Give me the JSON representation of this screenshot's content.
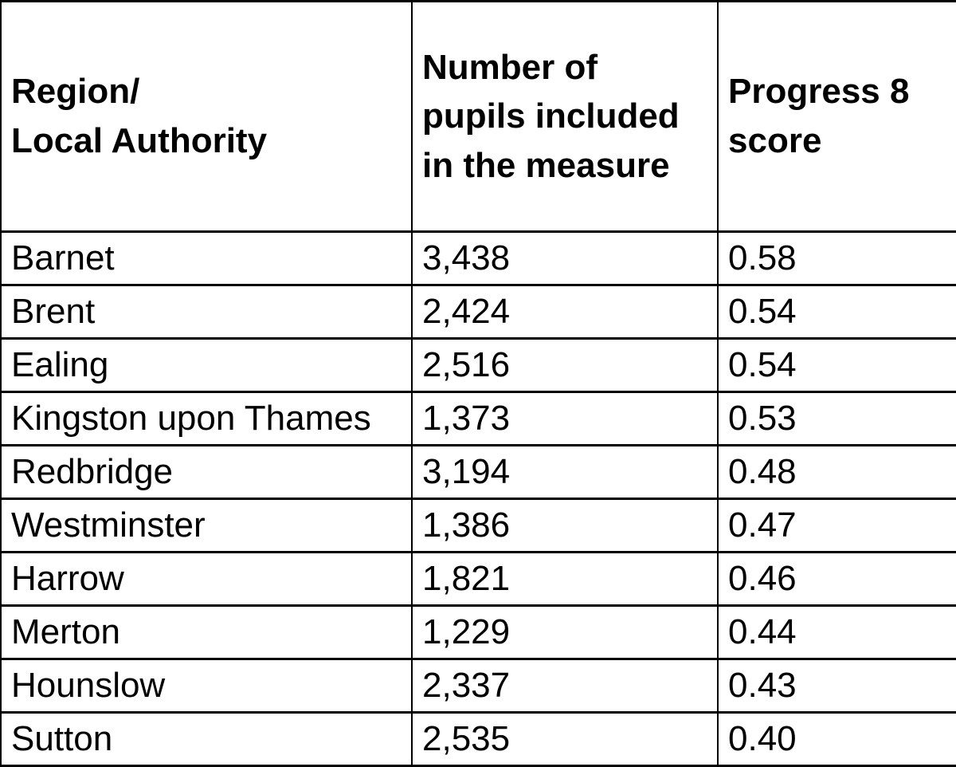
{
  "table": {
    "headers": [
      "Region/\nLocal Authority",
      "Number of\npupils included\nin the measure",
      "Progress 8\nscore"
    ],
    "rows": [
      {
        "region": "Barnet",
        "pupils": "3,438",
        "score": "0.58"
      },
      {
        "region": "Brent",
        "pupils": "2,424",
        "score": "0.54"
      },
      {
        "region": "Ealing",
        "pupils": "2,516",
        "score": "0.54"
      },
      {
        "region": "Kingston upon Thames",
        "pupils": "1,373",
        "score": "0.53"
      },
      {
        "region": "Redbridge",
        "pupils": "3,194",
        "score": "0.48"
      },
      {
        "region": "Westminster",
        "pupils": "1,386",
        "score": "0.47"
      },
      {
        "region": "Harrow",
        "pupils": "1,821",
        "score": "0.46"
      },
      {
        "region": "Merton",
        "pupils": "1,229",
        "score": "0.44"
      },
      {
        "region": "Hounslow",
        "pupils": "2,337",
        "score": "0.43"
      },
      {
        "region": "Sutton",
        "pupils": "2,535",
        "score": "0.40"
      }
    ]
  },
  "colors": {
    "border": "#000000",
    "text": "#000000",
    "background": "#ffffff"
  },
  "chart_data": {
    "type": "table",
    "columns": [
      "Region/Local Authority",
      "Number of pupils included in the measure",
      "Progress 8 score"
    ],
    "rows": [
      [
        "Barnet",
        3438,
        0.58
      ],
      [
        "Brent",
        2424,
        0.54
      ],
      [
        "Ealing",
        2516,
        0.54
      ],
      [
        "Kingston upon Thames",
        1373,
        0.53
      ],
      [
        "Redbridge",
        3194,
        0.48
      ],
      [
        "Westminster",
        1386,
        0.47
      ],
      [
        "Harrow",
        1821,
        0.46
      ],
      [
        "Merton",
        1229,
        0.44
      ],
      [
        "Hounslow",
        2337,
        0.43
      ],
      [
        "Sutton",
        2535,
        0.4
      ]
    ]
  }
}
